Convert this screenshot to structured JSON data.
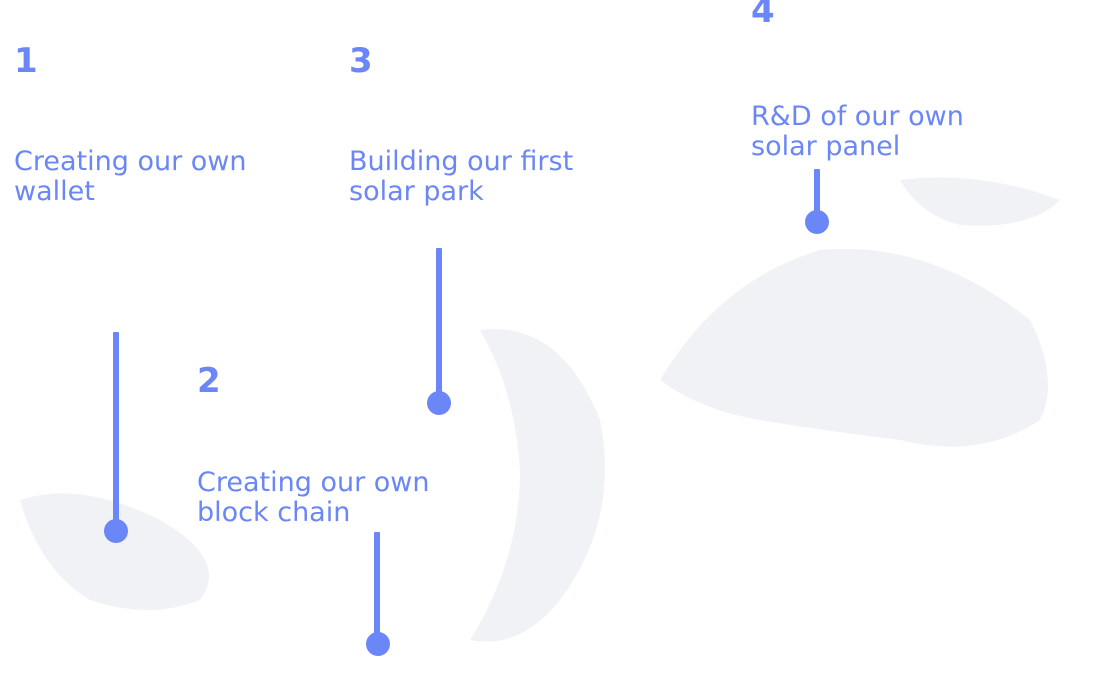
{
  "milestones": [
    {
      "number": "1",
      "text": "Creating our own\nwallet"
    },
    {
      "number": "2",
      "text": "Creating our own\nblock chain"
    },
    {
      "number": "3",
      "text": "Building our first\nsolar park"
    },
    {
      "number": "4",
      "text": "R&D of our own\nsolar panel"
    }
  ],
  "colors": {
    "accent": "#6b86f7",
    "background": "#ffffff"
  }
}
